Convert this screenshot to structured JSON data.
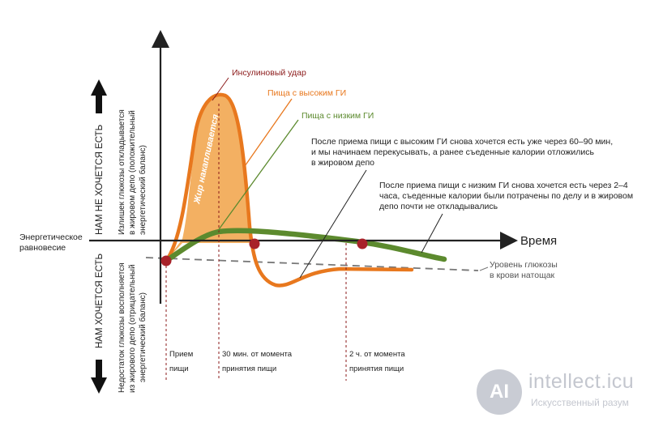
{
  "axis": {
    "time": "Время",
    "equilibrium": [
      "Энергетическое",
      "равновесие"
    ]
  },
  "left_labels": {
    "top_big": "НАМ НЕ ХОЧЕТСЯ ЕСТЬ",
    "top_small": [
      "Излишек глюкозы откладывается",
      "в жировом депо (положительный",
      "энергетический баланс)"
    ],
    "bottom_big": "НАМ ХОЧЕТСЯ ЕСТЬ",
    "bottom_small": [
      "Недостаток глюкозы восполняется",
      "из жирового депо (отрицательный",
      "энергетический баланс)"
    ]
  },
  "annotations": {
    "insulin": "Инсулиновый удар",
    "high_gi": "Пища с высоким ГИ",
    "low_gi": "Пища с низким ГИ",
    "fat": "Жир накапливается",
    "note_high": [
      "После приема пищи с высоким ГИ снова хочется есть уже через 60–90 мин,",
      "и мы начинаем перекусывать, а ранее съеденные калории отложились",
      "в жировом депо"
    ],
    "note_low": [
      "После приема пищи с низким ГИ снова хочется есть через 2–4",
      "часа, съеденные калории были потрачены по делу и в жировом",
      "депо почти не откладывались"
    ],
    "fasting": [
      "Уровень глюкозы",
      "в крови натощак"
    ]
  },
  "time_marks": [
    [
      "Прием",
      "пищи"
    ],
    [
      "30 мин. от момента",
      "принятия пищи"
    ],
    [
      "2 ч. от момента",
      "принятия пищи"
    ]
  ],
  "colors": {
    "high_gi": "#e8781e",
    "high_gi_fill": "#f3b062",
    "low_gi": "#5c8a2e",
    "insulin": "#8b1a1a",
    "marker": "#a8222a",
    "axis": "#222222",
    "fasting_line": "#777777"
  },
  "watermark": {
    "logo": "AI",
    "name": "intellect.icu",
    "sub": "Искусственный разум"
  }
}
